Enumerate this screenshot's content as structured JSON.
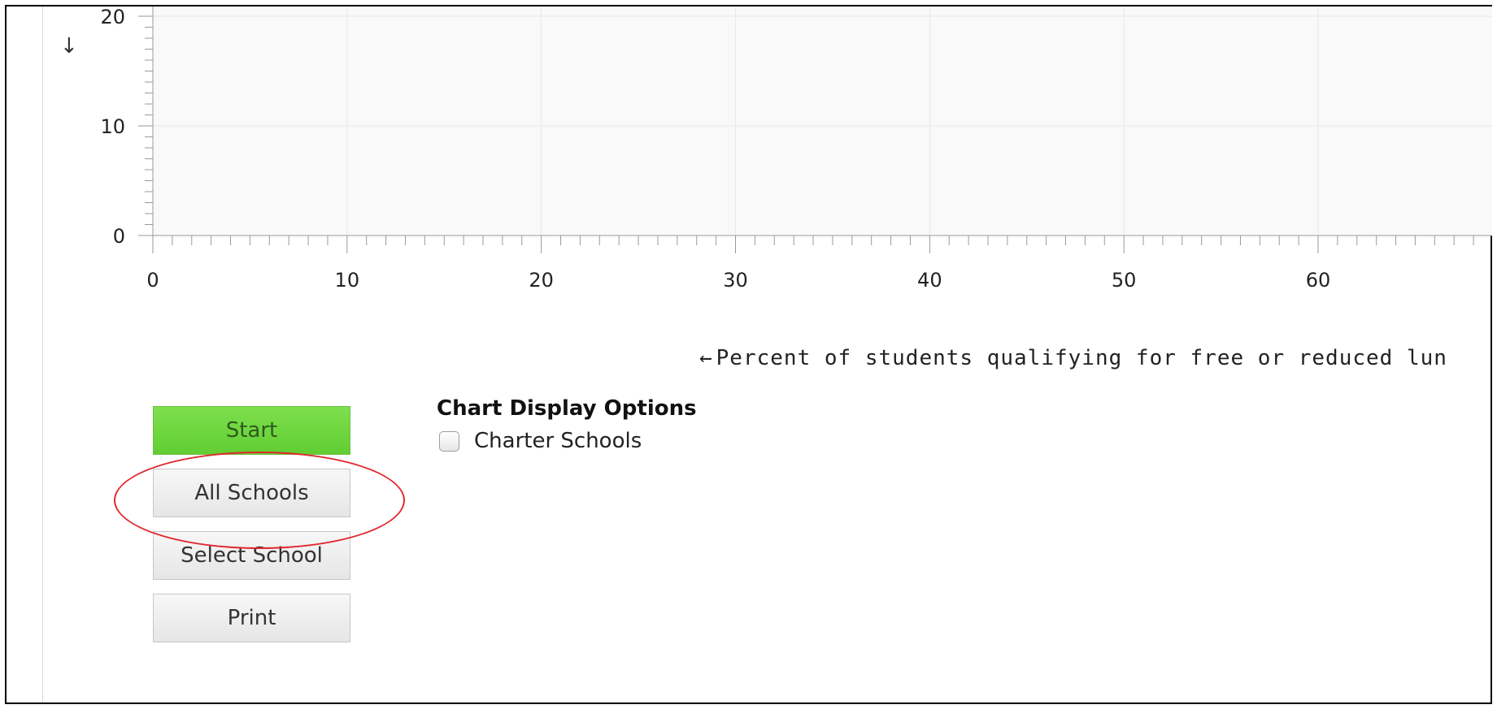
{
  "chart_data": {
    "type": "scatter",
    "x": [],
    "y": [],
    "x_ticks": [
      0,
      10,
      20,
      30,
      40,
      50,
      60
    ],
    "y_ticks": [
      0,
      10,
      20
    ],
    "xlabel": "Percent of students qualifying for free or reduced lun",
    "xlabel_arrow": "←",
    "y_arrow": "↓",
    "xlim": [
      0,
      68.8
    ],
    "ylim": [
      0,
      20.8
    ],
    "grid": true,
    "colors": {
      "plot_background": "#f9f9f9",
      "gridline": "#e8e8e8",
      "axis": "#9a9a9a"
    }
  },
  "buttons": {
    "start": "Start",
    "all_schools": "All Schools",
    "select_school": "Select School",
    "print": "Print"
  },
  "options": {
    "title": "Chart Display Options",
    "charter_schools": {
      "label": "Charter Schools",
      "checked": false
    }
  },
  "colors": {
    "start_button": "#6bd63c",
    "highlight": "#e0282d"
  }
}
